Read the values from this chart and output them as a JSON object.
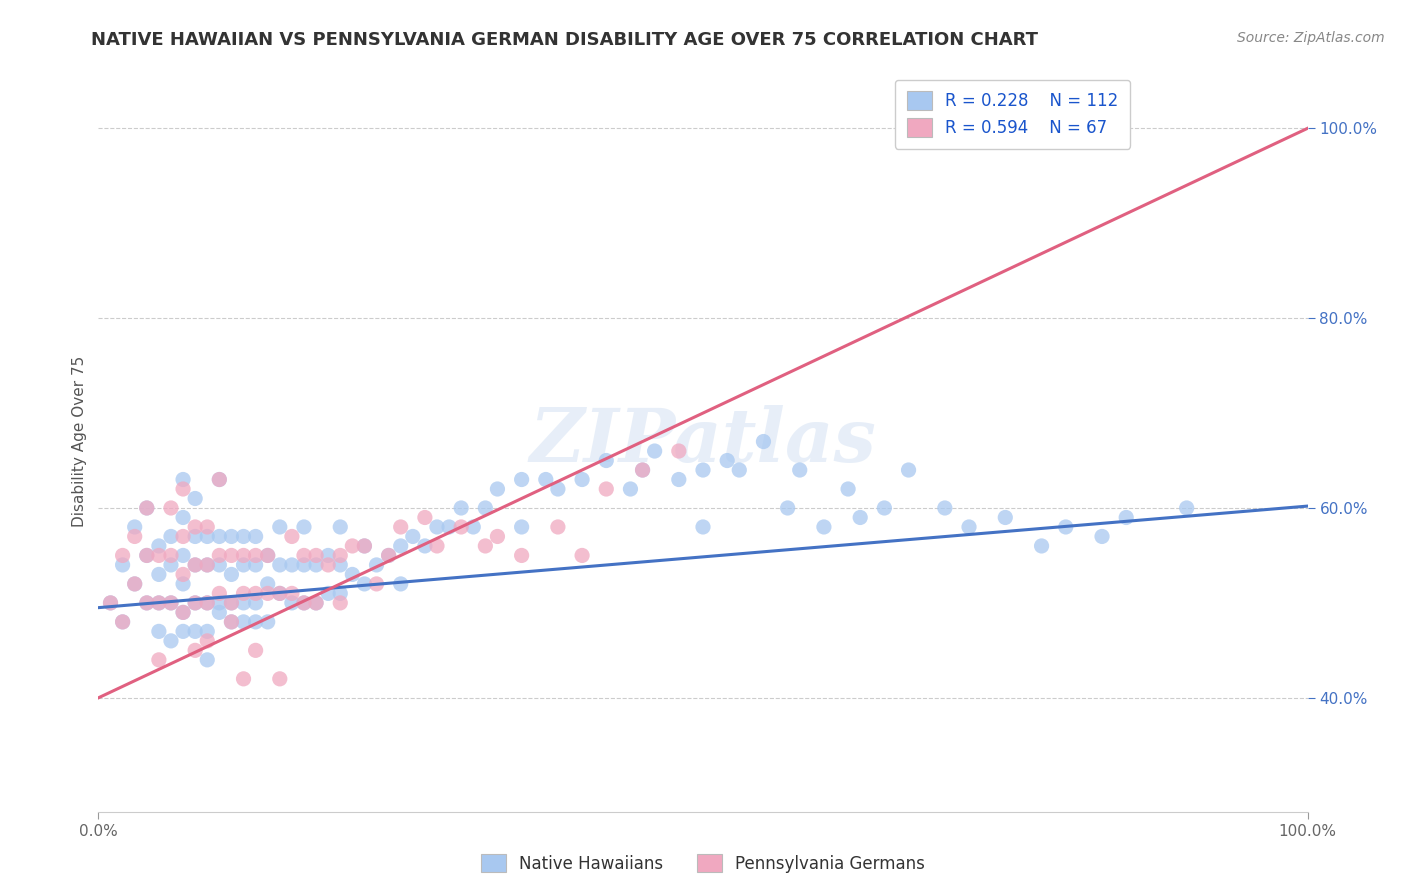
{
  "title": "NATIVE HAWAIIAN VS PENNSYLVANIA GERMAN DISABILITY AGE OVER 75 CORRELATION CHART",
  "source": "Source: ZipAtlas.com",
  "ylabel": "Disability Age Over 75",
  "R_blue": 0.228,
  "N_blue": 112,
  "R_pink": 0.594,
  "N_pink": 67,
  "blue_color": "#A8C8F0",
  "pink_color": "#F0A8C0",
  "blue_line_color": "#4472C4",
  "pink_line_color": "#E06080",
  "legend_label_blue": "Native Hawaiians",
  "legend_label_pink": "Pennsylvania Germans",
  "watermark": "ZIPatlas",
  "xlim": [
    0.0,
    1.0
  ],
  "ylim": [
    0.28,
    1.06
  ],
  "y_ticks": [
    0.4,
    0.6,
    0.8,
    1.0
  ],
  "y_tick_labels": [
    "40.0%",
    "60.0%",
    "80.0%",
    "100.0%"
  ],
  "blue_line_intercept": 0.495,
  "blue_line_slope": 0.107,
  "pink_line_intercept": 0.4,
  "pink_line_slope": 0.6,
  "blue_scatter_x": [
    0.01,
    0.02,
    0.02,
    0.03,
    0.03,
    0.04,
    0.04,
    0.04,
    0.05,
    0.05,
    0.05,
    0.05,
    0.06,
    0.06,
    0.06,
    0.06,
    0.07,
    0.07,
    0.07,
    0.07,
    0.07,
    0.07,
    0.08,
    0.08,
    0.08,
    0.08,
    0.08,
    0.09,
    0.09,
    0.09,
    0.09,
    0.09,
    0.1,
    0.1,
    0.1,
    0.1,
    0.1,
    0.11,
    0.11,
    0.11,
    0.11,
    0.12,
    0.12,
    0.12,
    0.12,
    0.13,
    0.13,
    0.13,
    0.13,
    0.14,
    0.14,
    0.14,
    0.15,
    0.15,
    0.15,
    0.16,
    0.16,
    0.17,
    0.17,
    0.17,
    0.18,
    0.18,
    0.19,
    0.19,
    0.2,
    0.2,
    0.2,
    0.21,
    0.22,
    0.22,
    0.23,
    0.24,
    0.25,
    0.25,
    0.26,
    0.27,
    0.28,
    0.29,
    0.3,
    0.31,
    0.32,
    0.33,
    0.35,
    0.35,
    0.37,
    0.38,
    0.4,
    0.42,
    0.44,
    0.45,
    0.46,
    0.48,
    0.5,
    0.5,
    0.52,
    0.53,
    0.55,
    0.57,
    0.58,
    0.6,
    0.62,
    0.63,
    0.65,
    0.67,
    0.7,
    0.72,
    0.75,
    0.78,
    0.8,
    0.83,
    0.85,
    0.9
  ],
  "blue_scatter_y": [
    0.5,
    0.48,
    0.54,
    0.52,
    0.58,
    0.5,
    0.55,
    0.6,
    0.5,
    0.53,
    0.56,
    0.47,
    0.5,
    0.54,
    0.57,
    0.46,
    0.49,
    0.52,
    0.55,
    0.59,
    0.47,
    0.63,
    0.5,
    0.54,
    0.57,
    0.47,
    0.61,
    0.5,
    0.54,
    0.57,
    0.47,
    0.44,
    0.5,
    0.54,
    0.57,
    0.49,
    0.63,
    0.5,
    0.53,
    0.57,
    0.48,
    0.5,
    0.54,
    0.57,
    0.48,
    0.5,
    0.54,
    0.57,
    0.48,
    0.52,
    0.55,
    0.48,
    0.51,
    0.54,
    0.58,
    0.5,
    0.54,
    0.5,
    0.54,
    0.58,
    0.5,
    0.54,
    0.51,
    0.55,
    0.51,
    0.54,
    0.58,
    0.53,
    0.52,
    0.56,
    0.54,
    0.55,
    0.56,
    0.52,
    0.57,
    0.56,
    0.58,
    0.58,
    0.6,
    0.58,
    0.6,
    0.62,
    0.63,
    0.58,
    0.63,
    0.62,
    0.63,
    0.65,
    0.62,
    0.64,
    0.66,
    0.63,
    0.64,
    0.58,
    0.65,
    0.64,
    0.67,
    0.6,
    0.64,
    0.58,
    0.62,
    0.59,
    0.6,
    0.64,
    0.6,
    0.58,
    0.59,
    0.56,
    0.58,
    0.57,
    0.59,
    0.6
  ],
  "pink_scatter_x": [
    0.01,
    0.02,
    0.02,
    0.03,
    0.03,
    0.04,
    0.04,
    0.04,
    0.05,
    0.05,
    0.05,
    0.06,
    0.06,
    0.06,
    0.07,
    0.07,
    0.07,
    0.07,
    0.08,
    0.08,
    0.08,
    0.08,
    0.09,
    0.09,
    0.09,
    0.09,
    0.1,
    0.1,
    0.1,
    0.11,
    0.11,
    0.11,
    0.12,
    0.12,
    0.12,
    0.13,
    0.13,
    0.13,
    0.14,
    0.14,
    0.15,
    0.15,
    0.16,
    0.16,
    0.17,
    0.17,
    0.18,
    0.18,
    0.19,
    0.2,
    0.2,
    0.21,
    0.22,
    0.23,
    0.24,
    0.25,
    0.27,
    0.28,
    0.3,
    0.32,
    0.33,
    0.35,
    0.38,
    0.4,
    0.42,
    0.45,
    0.48
  ],
  "pink_scatter_y": [
    0.5,
    0.48,
    0.55,
    0.52,
    0.57,
    0.5,
    0.55,
    0.6,
    0.5,
    0.55,
    0.44,
    0.5,
    0.55,
    0.6,
    0.49,
    0.53,
    0.57,
    0.62,
    0.5,
    0.54,
    0.58,
    0.45,
    0.5,
    0.54,
    0.58,
    0.46,
    0.51,
    0.55,
    0.63,
    0.5,
    0.55,
    0.48,
    0.51,
    0.55,
    0.42,
    0.51,
    0.55,
    0.45,
    0.51,
    0.55,
    0.51,
    0.42,
    0.51,
    0.57,
    0.5,
    0.55,
    0.5,
    0.55,
    0.54,
    0.5,
    0.55,
    0.56,
    0.56,
    0.52,
    0.55,
    0.58,
    0.59,
    0.56,
    0.58,
    0.56,
    0.57,
    0.55,
    0.58,
    0.55,
    0.62,
    0.64,
    0.66
  ]
}
